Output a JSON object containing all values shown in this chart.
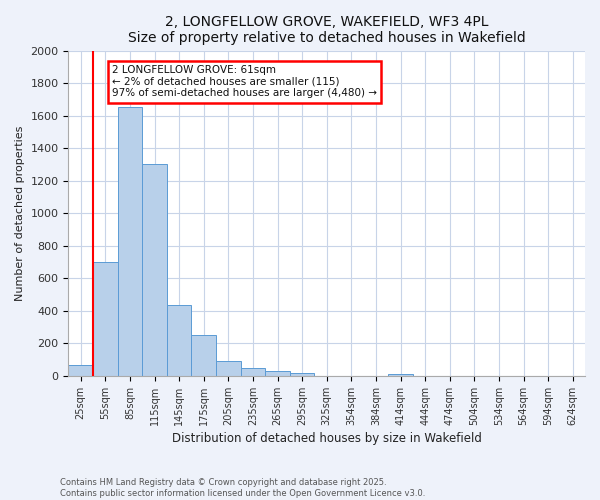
{
  "title": "2, LONGFELLOW GROVE, WAKEFIELD, WF3 4PL",
  "subtitle": "Size of property relative to detached houses in Wakefield",
  "xlabel": "Distribution of detached houses by size in Wakefield",
  "ylabel": "Number of detached properties",
  "bar_values": [
    65,
    700,
    1650,
    1300,
    435,
    250,
    90,
    50,
    30,
    20,
    0,
    0,
    0,
    10,
    0,
    0,
    0,
    0,
    0,
    0,
    0
  ],
  "bar_labels": [
    "25sqm",
    "55sqm",
    "85sqm",
    "115sqm",
    "145sqm",
    "175sqm",
    "205sqm",
    "235sqm",
    "265sqm",
    "295sqm",
    "325sqm",
    "354sqm",
    "384sqm",
    "414sqm",
    "444sqm",
    "474sqm",
    "504sqm",
    "534sqm",
    "564sqm",
    "594sqm",
    "624sqm"
  ],
  "bar_color": "#b8d0ea",
  "bar_edge_color": "#5b9bd5",
  "ylim": [
    0,
    2000
  ],
  "yticks": [
    0,
    200,
    400,
    600,
    800,
    1000,
    1200,
    1400,
    1600,
    1800,
    2000
  ],
  "red_line_x": 0.505,
  "annotation_box_text": "2 LONGFELLOW GROVE: 61sqm\n← 2% of detached houses are smaller (115)\n97% of semi-detached houses are larger (4,480) →",
  "footer_line1": "Contains HM Land Registry data © Crown copyright and database right 2025.",
  "footer_line2": "Contains public sector information licensed under the Open Government Licence v3.0.",
  "background_color": "#eef2fa",
  "plot_bg_color": "#ffffff",
  "grid_color": "#c8d4e8"
}
